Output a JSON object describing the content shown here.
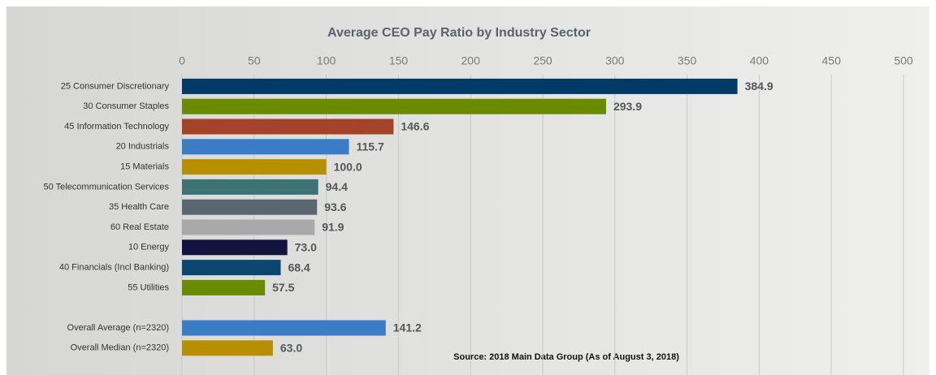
{
  "chart_data": {
    "type": "hbar",
    "title": "Average CEO Pay Ratio by Industry Sector",
    "source": "Source: 2018 Main Data Group (As of August 3, 2018)",
    "categories": [
      "25 Consumer Discretionary",
      "30 Consumer Staples",
      "45 Information Technology",
      "20 Industrials",
      "15 Materials",
      "50 Telecommunication Services",
      "35 Health Care",
      "60 Real Estate",
      "10 Energy",
      "40 Financials (Incl Banking)",
      "55 Utilities",
      null,
      "Overall Average (n=2320)",
      "Overall Median (n=2320)"
    ],
    "values": [
      384.9,
      293.9,
      146.6,
      115.7,
      100,
      94.4,
      93.6,
      91.9,
      73,
      68.4,
      57.5,
      null,
      141.2,
      63
    ],
    "value_labels": [
      "384.9",
      "293.9",
      "146.6",
      "115.7",
      "100.0",
      "94.4",
      "93.6",
      "91.9",
      "73.0",
      "68.4",
      "57.5",
      null,
      "141.2",
      "63.0"
    ],
    "colors": [
      "#003a66",
      "#6a8a00",
      "#a5432a",
      "#3a7cc6",
      "#b88f00",
      "#3d7375",
      "#5a6670",
      "#a9a9ab",
      "#13133f",
      "#0c4670",
      "#6a8a00",
      null,
      "#3a7cc6",
      "#b88f00"
    ],
    "xlim": [
      0,
      500
    ],
    "xticks": [
      0,
      50,
      100,
      150,
      200,
      250,
      300,
      350,
      400,
      450,
      500
    ],
    "grid": true
  }
}
